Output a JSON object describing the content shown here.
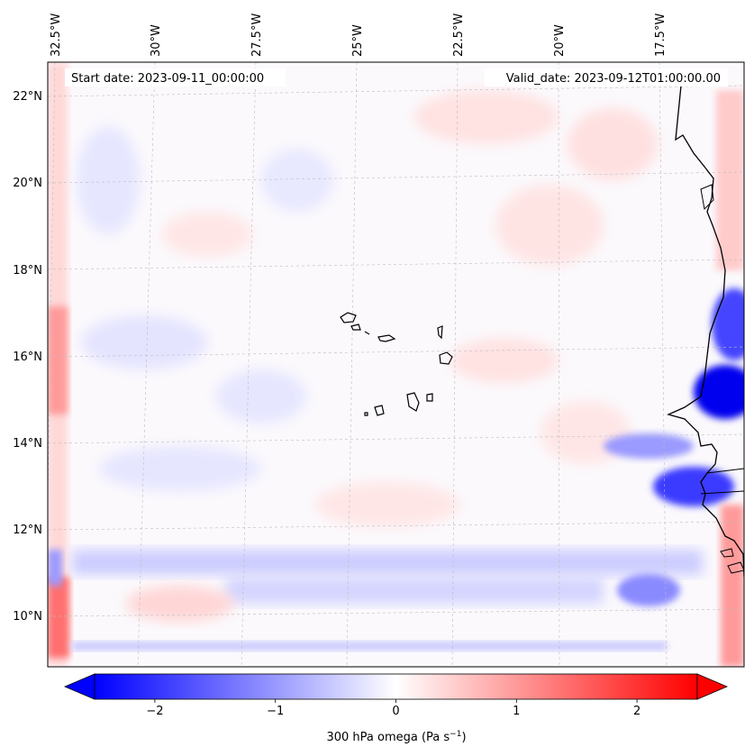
{
  "map": {
    "start_label": "Start date: 2023-09-11_00:00:00",
    "valid_label": "Valid_date: 2023-09-12T01:00:00.00",
    "lon_labels": [
      "32.5°W",
      "30°W",
      "27.5°W",
      "25°W",
      "22.5°W",
      "20°W",
      "17.5°W"
    ],
    "lat_labels": [
      "22°N",
      "20°N",
      "18°N",
      "16°N",
      "14°N",
      "12°N",
      "10°N"
    ],
    "field_colors": {
      "negative": "#0000ff",
      "zero": "#ffffff",
      "positive": "#ff0000",
      "coastline": "#000000"
    }
  },
  "colorbar": {
    "label_text": "300 hPa omega (Pa s",
    "label_sup": "−1",
    "label_close": ")",
    "tick_labels": [
      "−2",
      "−1",
      "0",
      "1",
      "2"
    ],
    "ticks": [
      -2,
      -1,
      0,
      1,
      2
    ],
    "vmin": -2.5,
    "vmax": 2.5,
    "extend": "both"
  }
}
